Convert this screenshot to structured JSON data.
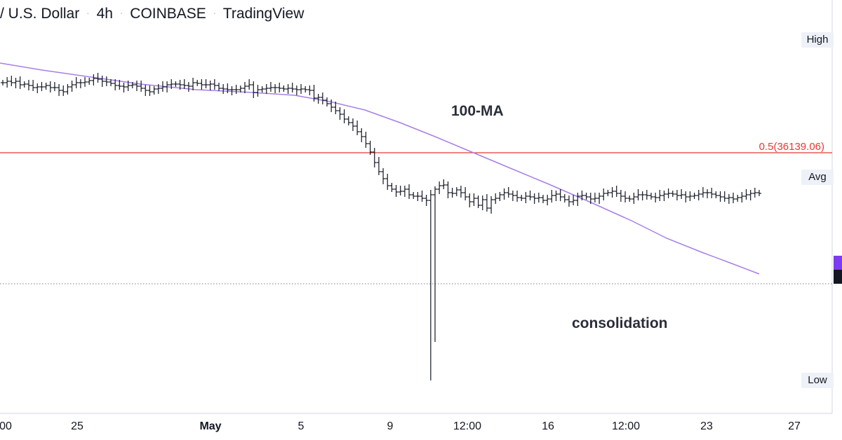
{
  "header": {
    "pair": "/ U.S. Dollar",
    "sep": "·",
    "interval": "4h",
    "exchange": "COINBASE",
    "source": "TradingView"
  },
  "annotations": {
    "ma_label": "100-MA",
    "consolidation_label": "consolidation"
  },
  "price_axis": {
    "high_label": "High",
    "avg_label": "Avg",
    "low_label": "Low"
  },
  "fib_level": {
    "label": "0.5(36139.06)",
    "value": 36139.06,
    "color": "#e53935"
  },
  "colors": {
    "ma": "#a77fe8",
    "candles": "#131722",
    "current_price_line": "#787b86",
    "axis_marker_purple": "#7e3bf2",
    "axis_marker_dark": "#131722"
  },
  "x_axis": {
    "ticks": [
      {
        "label": "00",
        "bold": false
      },
      {
        "label": "25",
        "bold": false
      },
      {
        "label": "May",
        "bold": true
      },
      {
        "label": "5",
        "bold": false
      },
      {
        "label": "9",
        "bold": false
      },
      {
        "label": "12:00",
        "bold": false
      },
      {
        "label": "16",
        "bold": false
      },
      {
        "label": "12:00",
        "bold": false
      },
      {
        "label": "23",
        "bold": false
      },
      {
        "label": "27",
        "bold": false
      }
    ]
  },
  "chart_data": {
    "type": "ohlc",
    "y_scale": "relative (no price ticks shown; only High/Avg/Low markers and the 0.5 Fibonacci level 36139.06)",
    "bars_close": [
      118,
      116,
      118,
      116,
      121,
      120,
      122,
      125,
      124,
      124,
      122,
      125,
      125,
      129,
      131,
      124,
      121,
      118,
      118,
      117,
      115,
      112,
      113,
      116,
      117,
      119,
      122,
      123,
      124,
      122,
      121,
      123,
      126,
      129,
      131,
      127,
      126,
      124,
      121,
      120,
      120,
      121,
      122,
      123,
      118,
      119,
      121,
      121,
      120,
      122,
      126,
      127,
      128,
      128,
      128,
      126,
      123,
      121,
      132,
      128,
      127,
      126,
      125,
      125,
      126,
      127,
      126,
      127,
      128,
      127,
      128,
      129,
      140,
      139,
      143,
      148,
      153,
      158,
      163,
      170,
      175,
      180,
      188,
      195,
      205,
      217,
      232,
      245,
      255,
      265,
      270,
      274,
      273,
      270,
      278,
      280,
      280,
      283,
      286,
      278,
      270,
      265,
      264,
      275,
      276,
      271,
      275,
      281,
      288,
      283,
      293,
      285,
      297,
      285,
      283,
      278,
      275,
      277,
      279,
      282,
      283,
      280,
      281,
      283,
      282,
      286,
      284,
      279,
      277,
      281,
      285,
      288,
      286,
      280,
      279,
      281,
      284,
      283,
      280,
      276,
      275,
      273,
      276,
      280,
      283,
      284,
      281,
      278,
      278,
      279,
      281,
      282,
      279,
      277,
      276,
      277,
      279,
      278,
      281,
      280,
      279,
      277,
      275,
      275,
      277,
      279,
      281,
      283,
      282,
      284,
      282,
      280,
      278,
      276,
      275,
      276
    ],
    "moving_average": {
      "name": "100-MA",
      "shape": "declining",
      "visible_range_relative": [
        0.0,
        1.0
      ]
    },
    "notes": "Sharp drop after early May, spike low around the 12:00 mark after the 9th, then sideways range labelled consolidation under the 100-MA."
  }
}
